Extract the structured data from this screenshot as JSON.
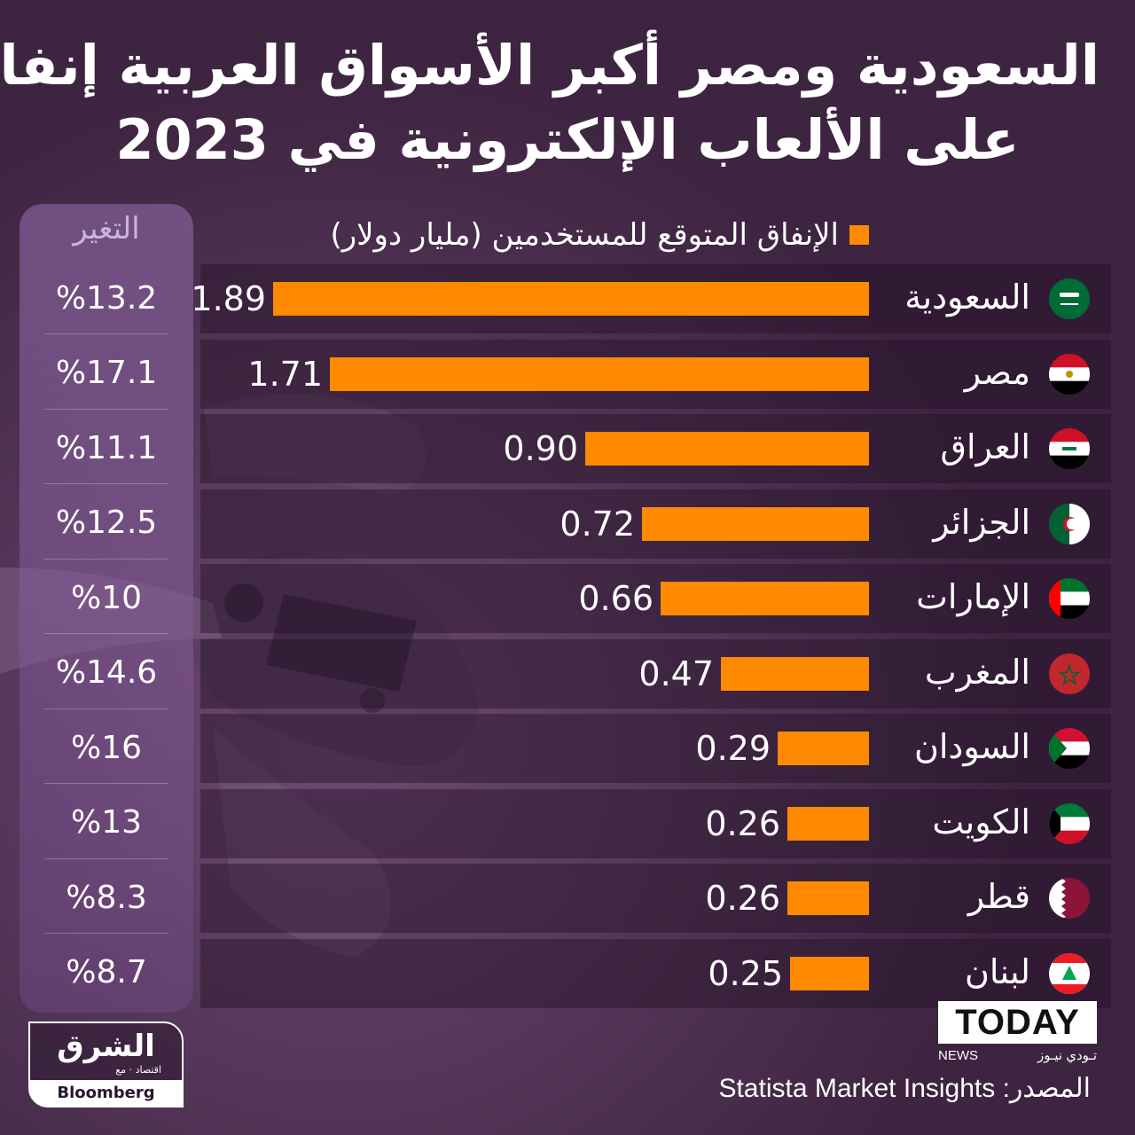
{
  "title": {
    "line1": "السعودية ومصر أكبر الأسواق العربية إنفاقا",
    "line2": "على الألعاب الإلكترونية في 2023"
  },
  "colors": {
    "background": "#3d2440",
    "bar": "#ff8a00",
    "change_column": "#8a5fa0"
  },
  "chart_data": {
    "type": "bar",
    "orientation": "horizontal",
    "series": [
      {
        "name": "الإنفاق المتوقع للمستخدمين (مليار دولار)",
        "values": [
          1.89,
          1.71,
          0.9,
          0.72,
          0.66,
          0.47,
          0.29,
          0.26,
          0.26,
          0.25
        ],
        "labels": [
          "1.89",
          "1.71",
          "0.90",
          "0.72",
          "0.66",
          "0.47",
          "0.29",
          "0.26",
          "0.26",
          "0.25"
        ]
      }
    ],
    "categories": [
      "السعودية",
      "مصر",
      "العراق",
      "الجزائر",
      "الإمارات",
      "المغرب",
      "السودان",
      "الكويت",
      "قطر",
      "لبنان"
    ],
    "flags": [
      "saudi-flag-icon",
      "egypt-flag-icon",
      "iraq-flag-icon",
      "algeria-flag-icon",
      "uae-flag-icon",
      "morocco-flag-icon",
      "sudan-flag-icon",
      "kuwait-flag-icon",
      "qatar-flag-icon",
      "lebanon-flag-icon"
    ],
    "change_header": "التغير",
    "change": [
      "%13.2",
      "%17.1",
      "%11.1",
      "%12.5",
      "%10",
      "%14.6",
      "%16",
      "%13",
      "%8.3",
      "%8.7"
    ],
    "xlim": [
      0,
      1.89
    ],
    "legend": "top"
  },
  "logo": {
    "main": "الشرق",
    "sub": "اقتصاد",
    "with": "مع",
    "partner": "Bloomberg"
  },
  "watermark": {
    "brand": "TODAY",
    "sub_latin": "NEWS",
    "sub_arabic": "تـودي نيـوز"
  },
  "source": "المصدر: Statista Market Insights"
}
